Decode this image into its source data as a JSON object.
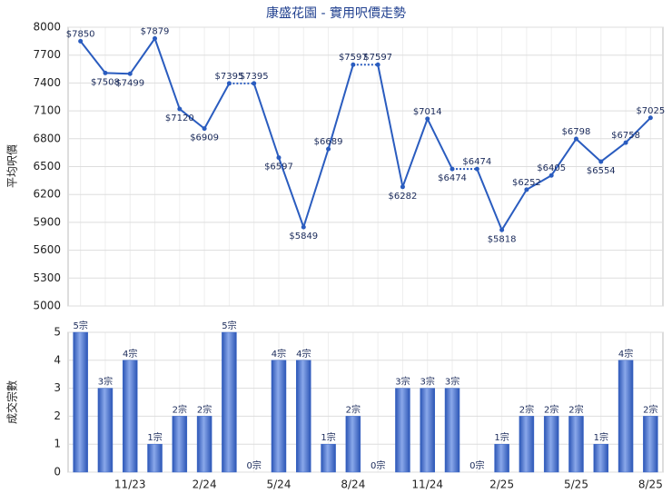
{
  "chart_data": [
    {
      "type": "line",
      "title": "康盛花園 - 實用呎價走勢",
      "y_label": "平均呎價",
      "values": [
        7850,
        7508,
        7499,
        7879,
        7120,
        6909,
        7395,
        7395,
        6597,
        5849,
        6689,
        7597,
        7597,
        6282,
        7014,
        6474,
        6474,
        5818,
        6252,
        6405,
        6798,
        6554,
        6758,
        7025
      ],
      "value_labels": [
        "$7850",
        "$7508",
        "$7499",
        "$7879",
        "$7120",
        "$6909",
        "$7395",
        "$7395",
        "$6597",
        "$5849",
        "$6689",
        "$7597",
        "$7597",
        "$6282",
        "$7014",
        "$6474",
        "$6474",
        "$5818",
        "$6252",
        "$6405",
        "$6798",
        "$6554",
        "$6758",
        "$7025"
      ],
      "color": "#2a5cbf",
      "ylim": [
        5000,
        8000
      ],
      "yticks": [
        5000,
        5300,
        5600,
        5900,
        6200,
        6500,
        6800,
        7100,
        7400,
        7700,
        8000
      ],
      "grid": true
    },
    {
      "type": "bar",
      "y_label": "成交宗數",
      "categories": [
        null,
        null,
        "11/23",
        null,
        null,
        "2/24",
        null,
        null,
        "5/24",
        null,
        null,
        "8/24",
        null,
        null,
        "11/24",
        null,
        null,
        "2/25",
        null,
        null,
        "5/25",
        null,
        null,
        "8/25"
      ],
      "values": [
        5,
        3,
        4,
        1,
        2,
        2,
        5,
        0,
        4,
        4,
        1,
        2,
        0,
        3,
        3,
        3,
        0,
        1,
        2,
        2,
        2,
        1,
        4,
        2
      ],
      "value_labels": [
        "5宗",
        "3宗",
        "4宗",
        "1宗",
        "2宗",
        "2宗",
        "5宗",
        "0宗",
        "4宗",
        "4宗",
        "1宗",
        "2宗",
        "0宗",
        "3宗",
        "3宗",
        "3宗",
        "0宗",
        "1宗",
        "2宗",
        "2宗",
        "2宗",
        "1宗",
        "4宗",
        "2宗"
      ],
      "color": "#3a66c8",
      "ylim": [
        0,
        5
      ],
      "yticks": [
        0,
        1,
        2,
        3,
        4,
        5
      ],
      "grid": true
    }
  ]
}
